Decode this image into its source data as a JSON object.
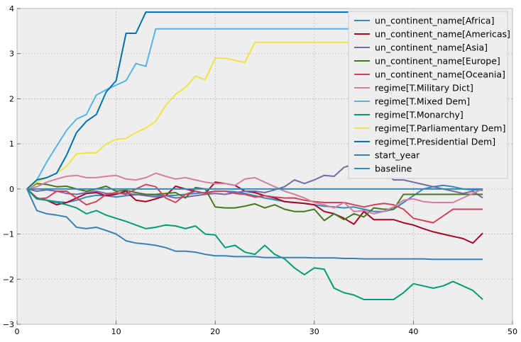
{
  "chart_data": {
    "type": "line",
    "xlim": [
      0,
      50
    ],
    "ylim": [
      -3,
      4
    ],
    "x_ticks": [
      "0",
      "10",
      "20",
      "30",
      "40",
      "50"
    ],
    "y_ticks": [
      "−3",
      "−2",
      "−1",
      "0",
      "1",
      "2",
      "3",
      "4"
    ],
    "grid": true,
    "background": "#eeeeee",
    "legend_position": "top-right",
    "x": [
      1,
      2,
      3,
      4,
      5,
      6,
      7,
      8,
      9,
      10,
      11,
      12,
      13,
      14,
      15,
      16,
      17,
      18,
      19,
      20,
      21,
      22,
      23,
      24,
      25,
      26,
      27,
      28,
      29,
      30,
      31,
      32,
      33,
      34,
      35,
      36,
      37,
      38,
      39,
      40,
      41,
      42,
      43,
      44,
      45,
      46,
      47
    ],
    "series": [
      {
        "name": "un_continent_name[Africa]",
        "color": "#348abd",
        "values": [
          0,
          -0.22,
          -0.25,
          -0.28,
          -0.3,
          -0.25,
          -0.18,
          -0.14,
          -0.15,
          -0.18,
          -0.15,
          -0.13,
          -0.12,
          -0.14,
          -0.15,
          -0.14,
          -0.12,
          -0.1,
          -0.08,
          -0.05,
          -0.05,
          -0.06,
          -0.1,
          -0.15,
          -0.2,
          -0.24,
          -0.28,
          -0.3,
          -0.32,
          -0.35,
          -0.38,
          -0.4,
          -0.42,
          -0.4,
          -0.45,
          -0.5,
          -0.5,
          -0.45,
          -0.3,
          -0.15,
          0,
          0.05,
          0.08,
          0.05,
          0,
          -0.02,
          -0.03
        ]
      },
      {
        "name": "un_continent_name[Americas]",
        "color": "#a60628",
        "values": [
          0,
          -0.2,
          -0.25,
          -0.35,
          -0.3,
          -0.2,
          -0.1,
          -0.08,
          -0.15,
          -0.12,
          -0.05,
          -0.25,
          -0.28,
          -0.22,
          -0.15,
          0.06,
          0,
          -0.05,
          -0.1,
          0.15,
          0.12,
          0.08,
          -0.05,
          -0.08,
          -0.15,
          -0.2,
          -0.28,
          -0.3,
          -0.32,
          -0.35,
          -0.5,
          -0.55,
          -0.65,
          -0.78,
          -0.5,
          -0.68,
          -0.68,
          -0.68,
          -0.75,
          -0.8,
          -0.88,
          -0.95,
          -1.0,
          -1.05,
          -1.1,
          -1.2,
          -0.98
        ]
      },
      {
        "name": "un_continent_name[Asia]",
        "color": "#7a68a6",
        "values": [
          0,
          -0.05,
          -0.02,
          -0.05,
          -0.1,
          -0.12,
          -0.08,
          -0.05,
          -0.1,
          -0.1,
          -0.1,
          -0.12,
          -0.15,
          -0.18,
          -0.15,
          -0.2,
          -0.18,
          -0.15,
          -0.12,
          -0.1,
          -0.12,
          -0.08,
          -0.05,
          -0.05,
          -0.08,
          -0.02,
          0.05,
          0.2,
          0.12,
          0.2,
          0.3,
          0.28,
          0.48,
          0.55,
          0.6,
          0.5,
          0.4,
          0.2,
          0.2,
          0.15,
          0.1,
          0.05,
          0,
          -0.05,
          -0.1,
          -0.05,
          -0.2
        ]
      },
      {
        "name": "un_continent_name[Europe]",
        "color": "#467821",
        "values": [
          0,
          0.12,
          0.1,
          0.05,
          0.06,
          0.0,
          -0.05,
          0.0,
          0.06,
          -0.05,
          -0.03,
          -0.08,
          -0.12,
          -0.12,
          -0.1,
          -0.08,
          -0.2,
          0.03,
          0.0,
          -0.4,
          -0.42,
          -0.42,
          -0.38,
          -0.33,
          -0.42,
          -0.35,
          -0.45,
          -0.5,
          -0.5,
          -0.45,
          -0.7,
          -0.55,
          -0.68,
          -0.55,
          -0.62,
          -0.42,
          -0.45,
          -0.45,
          -0.12,
          -0.12,
          -0.12,
          -0.12,
          -0.12,
          -0.12,
          -0.12,
          -0.12,
          -0.12
        ]
      },
      {
        "name": "un_continent_name[Oceania]",
        "color": "#cf4457",
        "values": [
          0,
          -0.22,
          -0.2,
          -0.05,
          -0.05,
          -0.2,
          -0.35,
          -0.28,
          -0.12,
          -0.08,
          -0.12,
          0,
          0.1,
          0.05,
          -0.2,
          -0.3,
          -0.12,
          -0.05,
          -0.1,
          -0.05,
          -0.05,
          -0.1,
          -0.12,
          -0.18,
          -0.15,
          -0.18,
          -0.2,
          -0.2,
          -0.25,
          -0.28,
          -0.3,
          -0.3,
          -0.3,
          -0.35,
          -0.4,
          -0.35,
          -0.32,
          -0.35,
          -0.45,
          -0.65,
          -0.7,
          -0.75,
          -0.6,
          -0.45,
          -0.45,
          -0.45,
          -0.45
        ]
      },
      {
        "name": "regime[T.Military Dict]",
        "color": "#d47fa0",
        "values": [
          0,
          0.05,
          0.15,
          0.22,
          0.28,
          0.3,
          0.25,
          0.25,
          0.28,
          0.3,
          0.22,
          0.2,
          0.25,
          0.35,
          0.28,
          0.22,
          0.25,
          0.2,
          0.15,
          0.12,
          0.12,
          0.08,
          0.22,
          0.25,
          0.15,
          0.05,
          -0.05,
          -0.12,
          -0.2,
          -0.3,
          -0.35,
          -0.42,
          -0.3,
          -0.5,
          -0.48,
          -0.55,
          -0.5,
          -0.4,
          -0.25,
          -0.22,
          -0.28,
          -0.3,
          -0.3,
          -0.3,
          -0.2,
          -0.1,
          0
        ]
      },
      {
        "name": "regime[T.Mixed Dem]",
        "color": "#56b4e9",
        "values": [
          0,
          0.2,
          0.6,
          0.95,
          1.3,
          1.55,
          1.65,
          2.08,
          2.2,
          2.3,
          2.4,
          2.78,
          2.72,
          3.55,
          3.55,
          3.55,
          3.55,
          3.55,
          3.55,
          3.55,
          3.55,
          3.55,
          3.55,
          3.55,
          3.55,
          3.55,
          3.55,
          3.55,
          3.55,
          3.55,
          3.55,
          3.55,
          3.55,
          3.55,
          3.55,
          3.55,
          3.55,
          3.55,
          3.55,
          3.55,
          3.55,
          3.55,
          3.55,
          3.55,
          3.55,
          3.55,
          3.55
        ]
      },
      {
        "name": "regime[T.Monarchy]",
        "color": "#009e73",
        "values": [
          0,
          -0.22,
          -0.25,
          -0.3,
          -0.35,
          -0.42,
          -0.55,
          -0.48,
          -0.58,
          -0.65,
          -0.72,
          -0.8,
          -0.88,
          -0.85,
          -0.8,
          -0.82,
          -0.88,
          -0.82,
          -1.0,
          -1.02,
          -1.3,
          -1.25,
          -1.4,
          -1.45,
          -1.25,
          -1.45,
          -1.55,
          -1.75,
          -1.9,
          -1.75,
          -1.78,
          -2.2,
          -2.3,
          -2.35,
          -2.45,
          -2.45,
          -2.45,
          -2.45,
          -2.3,
          -2.1,
          -2.15,
          -2.2,
          -2.15,
          -2.05,
          -2.15,
          -2.25,
          -2.45
        ]
      },
      {
        "name": "regime[T.Parliamentary Dem]",
        "color": "#f0e442",
        "values": [
          0,
          0.15,
          0.25,
          0.35,
          0.5,
          0.78,
          0.8,
          0.8,
          1.0,
          1.1,
          1.12,
          1.25,
          1.35,
          1.5,
          1.85,
          2.1,
          2.25,
          2.5,
          2.42,
          2.9,
          2.9,
          2.85,
          2.8,
          3.25,
          3.25,
          3.25,
          3.25,
          3.25,
          3.25,
          3.25,
          3.25,
          3.25,
          3.25,
          3.25,
          3.25,
          3.25,
          3.25,
          3.25,
          3.25,
          3.25,
          3.25,
          3.25,
          3.25,
          3.25,
          3.25,
          3.25,
          3.25
        ]
      },
      {
        "name": "regime[T.Presidential Dem]",
        "color": "#0072b2",
        "values": [
          0,
          0.2,
          0.25,
          0.35,
          0.75,
          1.25,
          1.5,
          1.65,
          2.15,
          2.4,
          3.45,
          3.45,
          3.92,
          3.92,
          3.92,
          3.92,
          3.92,
          3.92,
          3.92,
          3.92,
          3.92,
          3.92,
          3.92,
          3.92,
          3.92,
          3.92,
          3.92,
          3.92,
          3.92,
          3.92,
          3.92,
          3.92,
          3.92,
          3.92,
          3.92,
          3.92,
          3.92,
          3.92,
          3.92,
          3.92,
          3.92,
          3.92,
          3.92,
          3.92,
          3.92,
          3.92,
          3.92
        ]
      },
      {
        "name": "start_year",
        "color": "#3a82b5",
        "values": [
          0,
          -0.48,
          -0.55,
          -0.58,
          -0.62,
          -0.85,
          -0.88,
          -0.85,
          -0.92,
          -1.0,
          -1.15,
          -1.2,
          -1.22,
          -1.25,
          -1.3,
          -1.38,
          -1.38,
          -1.4,
          -1.45,
          -1.48,
          -1.48,
          -1.5,
          -1.5,
          -1.5,
          -1.52,
          -1.52,
          -1.52,
          -1.52,
          -1.52,
          -1.53,
          -1.53,
          -1.53,
          -1.54,
          -1.54,
          -1.55,
          -1.55,
          -1.55,
          -1.55,
          -1.55,
          -1.55,
          -1.55,
          -1.56,
          -1.56,
          -1.56,
          -1.56,
          -1.56,
          -1.56
        ]
      },
      {
        "name": "baseline",
        "color": "#348abd",
        "values": [
          0,
          0,
          0,
          0,
          0,
          0,
          0,
          0,
          0,
          0,
          0,
          0,
          0,
          0,
          0,
          0,
          0,
          0,
          0,
          0,
          0,
          0,
          0,
          0,
          0,
          0,
          0,
          0,
          0,
          0,
          0,
          0,
          0,
          0,
          0,
          0,
          0,
          0,
          0,
          0,
          0,
          0,
          0,
          0,
          0,
          0,
          0
        ]
      }
    ]
  }
}
